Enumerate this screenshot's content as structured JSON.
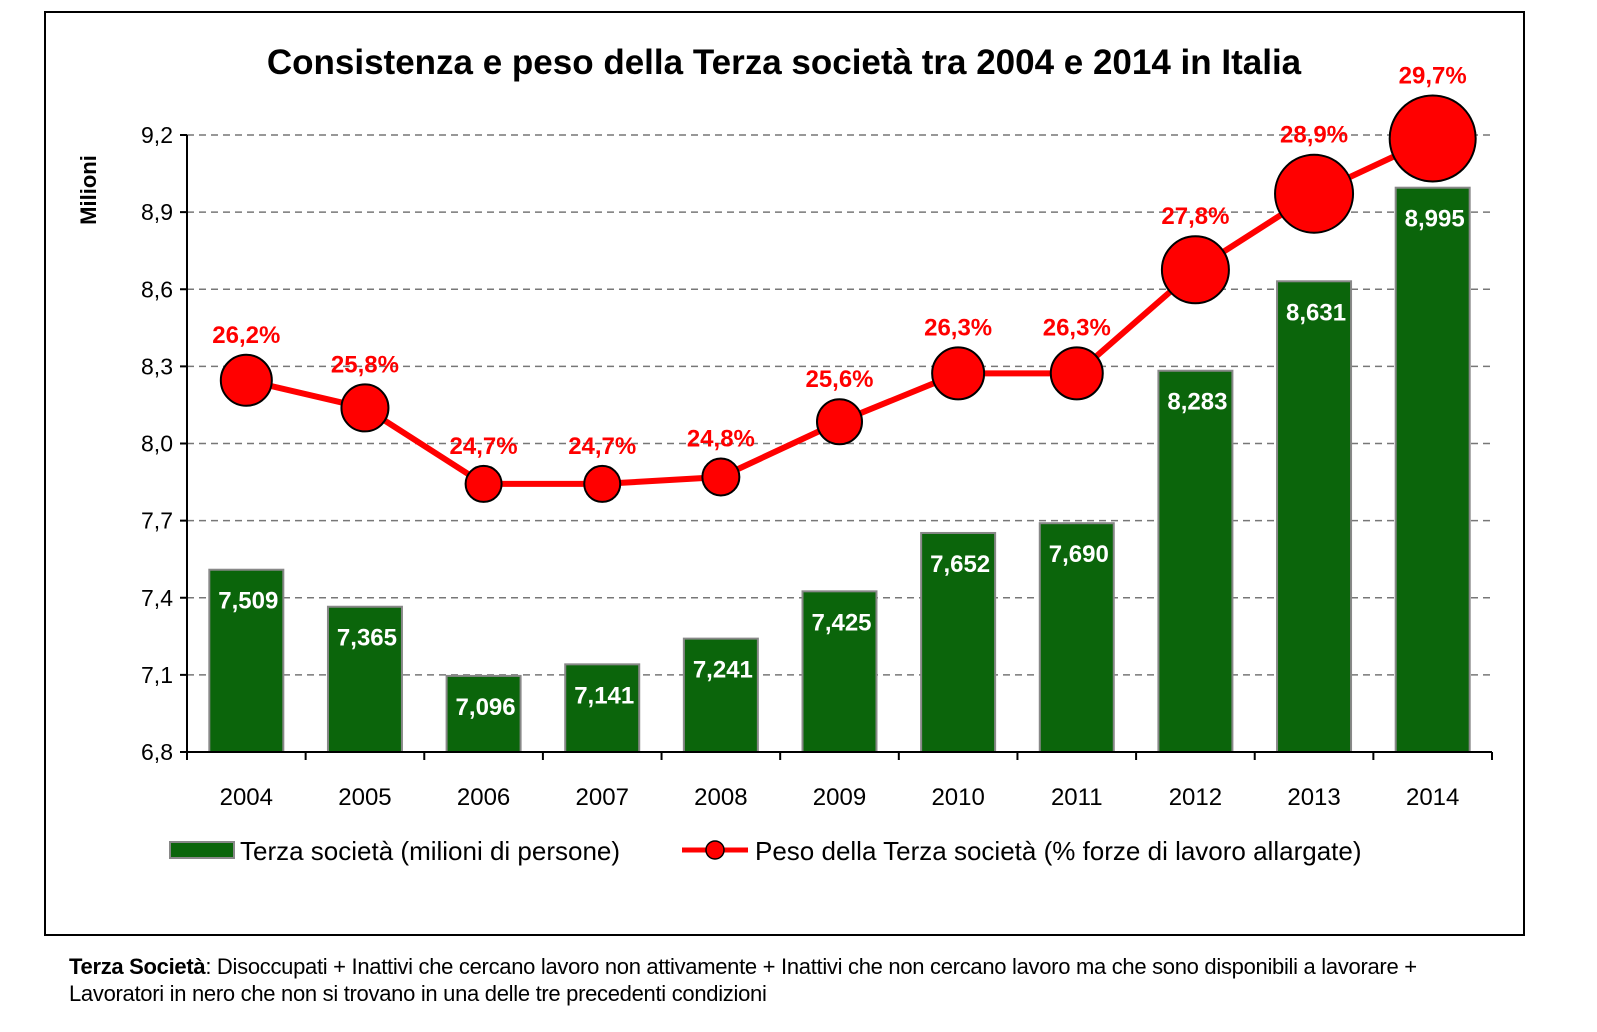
{
  "chart_data": {
    "type": "bar+line",
    "title": "Consistenza e peso della Terza società tra 2004 e 2014 in Italia",
    "ylabel": "Milioni",
    "xlabel": "",
    "ylim": [
      6.8,
      9.2
    ],
    "yticks": [
      "6,8",
      "7,1",
      "7,4",
      "7,7",
      "8,0",
      "8,3",
      "8,6",
      "8,9",
      "9,2"
    ],
    "ytick_values": [
      6.8,
      7.1,
      7.4,
      7.7,
      8.0,
      8.3,
      8.6,
      8.9,
      9.2
    ],
    "y2lim": [
      20.82,
      29.75
    ],
    "grid": true,
    "legend_position": "bottom",
    "categories": [
      "2004",
      "2005",
      "2006",
      "2007",
      "2008",
      "2009",
      "2010",
      "2011",
      "2012",
      "2013",
      "2014"
    ],
    "series": [
      {
        "name": "Terza società (milioni di persone)",
        "type": "bar",
        "color": "#0b650b",
        "values": [
          7.509,
          7.365,
          7.096,
          7.141,
          7.241,
          7.425,
          7.652,
          7.69,
          8.283,
          8.631,
          8.995
        ],
        "labels": [
          "7,509",
          "7,365",
          "7,096",
          "7,141",
          "7,241",
          "7,425",
          "7,652",
          "7,690",
          "8,283",
          "8,631",
          "8,995"
        ]
      },
      {
        "name": "Peso della Terza società (% forze di lavoro allargate)",
        "type": "line",
        "color": "#ff0000",
        "values": [
          26.2,
          25.8,
          24.7,
          24.7,
          24.8,
          25.6,
          26.3,
          26.3,
          27.8,
          28.9,
          29.7
        ],
        "labels": [
          "26,2%",
          "25,8%",
          "24,7%",
          "24,7%",
          "24,8%",
          "25,6%",
          "26,3%",
          "26,3%",
          "27,8%",
          "28,9%",
          "29,7%"
        ]
      }
    ]
  },
  "footnote": {
    "term": "Terza Società",
    "definition": ": Disoccupati + Inattivi che cercano lavoro non attivamente + Inattivi che non cercano lavoro ma che sono disponibili a lavorare + Lavoratori in nero che non si trovano in una delle tre precedenti condizioni"
  }
}
